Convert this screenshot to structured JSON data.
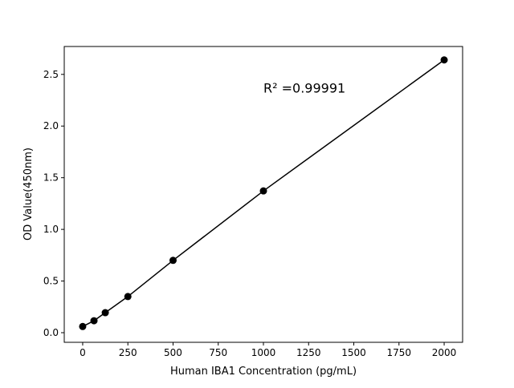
{
  "chart_data": {
    "type": "line",
    "title": "",
    "xlabel": "Human IBA1 Concentration (pg/mL)",
    "ylabel": "OD Value(450nm)",
    "x": [
      0,
      62.5,
      125,
      250,
      500,
      1000,
      2000
    ],
    "series": [
      {
        "values": [
          0.06,
          0.116,
          0.194,
          0.35,
          0.7,
          1.372,
          2.64
        ],
        "color": "#000000",
        "marker": "circle"
      }
    ],
    "xlim": [
      -102,
      2102
    ],
    "ylim": [
      -0.093,
      2.77
    ],
    "xticks": [
      0,
      250,
      500,
      750,
      1000,
      1250,
      1500,
      1750,
      2000
    ],
    "xtick_labels": [
      "0",
      "250",
      "500",
      "750",
      "1000",
      "1250",
      "1500",
      "1750",
      "2000"
    ],
    "yticks": [
      0,
      0.5,
      1.0,
      1.5,
      2.0,
      2.5
    ],
    "ytick_labels": [
      "0.0",
      "0.5",
      "1.0",
      "1.5",
      "2.0",
      "2.5"
    ],
    "annotation": {
      "text": "R² =0.99991",
      "x": 1000,
      "y": 2.37
    },
    "grid": false,
    "legend": "none"
  }
}
